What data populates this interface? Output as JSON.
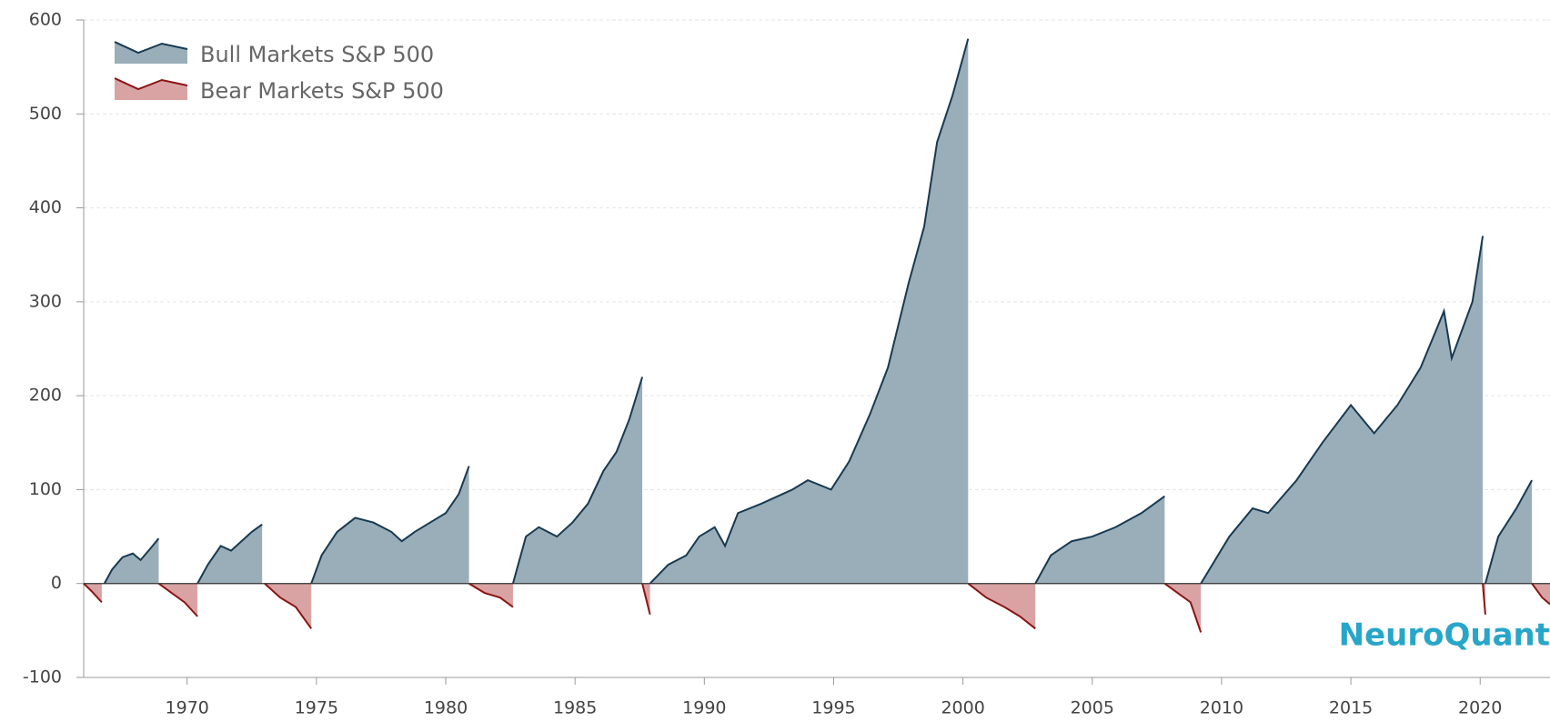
{
  "chart_data": {
    "type": "area",
    "series": [
      {
        "name": "Bull Markets S&P 500",
        "color": "#163a52",
        "fill": "#9aaeb9",
        "x": [
          1966.8,
          1967.1,
          1967.5,
          1967.9,
          1968.2,
          1968.6,
          1968.9,
          null,
          1970.4,
          1970.8,
          1971.3,
          1971.7,
          1972.1,
          1972.5,
          1972.9,
          null,
          1974.8,
          1975.2,
          1975.8,
          1976.5,
          1977.2,
          1977.9,
          1978.3,
          1978.8,
          1979.4,
          1980.0,
          1980.5,
          1980.9,
          null,
          1982.6,
          1983.1,
          1983.6,
          1984.3,
          1984.9,
          1985.5,
          1986.1,
          1986.6,
          1987.1,
          1987.6,
          null,
          1987.9,
          1988.6,
          1989.3,
          1989.8,
          1990.4,
          1990.8,
          1991.3,
          1992.2,
          1993.4,
          1994.0,
          1994.9,
          1995.6,
          1996.4,
          1997.1,
          1997.9,
          1998.5,
          1999.0,
          1999.6,
          2000.2,
          null,
          2002.8,
          2003.4,
          2004.2,
          2005.0,
          2005.9,
          2006.9,
          2007.8,
          null,
          2009.2,
          2010.3,
          2011.2,
          2011.8,
          2012.9,
          2013.9,
          2015.0,
          2015.9,
          2016.8,
          2017.7,
          2018.6,
          2018.9,
          2019.7,
          2020.1,
          null,
          2020.2,
          2020.7,
          2021.4,
          2022.0
        ],
        "values": [
          0,
          15,
          28,
          32,
          25,
          38,
          48,
          null,
          0,
          20,
          40,
          35,
          45,
          55,
          63,
          null,
          0,
          30,
          55,
          70,
          65,
          55,
          45,
          55,
          65,
          75,
          95,
          125,
          null,
          0,
          50,
          60,
          50,
          65,
          85,
          120,
          140,
          175,
          220,
          null,
          0,
          20,
          30,
          50,
          60,
          40,
          75,
          85,
          100,
          110,
          100,
          130,
          180,
          230,
          320,
          380,
          470,
          520,
          580,
          null,
          0,
          30,
          45,
          50,
          60,
          75,
          93,
          null,
          0,
          50,
          80,
          75,
          110,
          150,
          190,
          160,
          190,
          230,
          290,
          240,
          300,
          370,
          null,
          0,
          50,
          80,
          110
        ]
      },
      {
        "name": "Bear Markets S&P 500",
        "color": "#8b1414",
        "fill": "#d9a3a3",
        "x": [
          1966.0,
          1966.3,
          1966.7,
          null,
          1968.9,
          1969.4,
          1969.9,
          1970.4,
          null,
          1973.0,
          1973.6,
          1974.2,
          1974.8,
          null,
          1980.9,
          1981.5,
          1982.1,
          1982.6,
          null,
          1987.6,
          1987.9,
          null,
          2000.2,
          2000.9,
          2001.6,
          2002.2,
          2002.8,
          null,
          2007.8,
          2008.3,
          2008.8,
          2009.2,
          null,
          2020.1,
          2020.2,
          null,
          2022.0,
          2022.4,
          2022.7
        ],
        "values": [
          0,
          -8,
          -20,
          null,
          0,
          -10,
          -20,
          -35,
          null,
          0,
          -15,
          -25,
          -48,
          null,
          0,
          -10,
          -15,
          -25,
          null,
          0,
          -33,
          null,
          0,
          -15,
          -25,
          -35,
          -48,
          null,
          0,
          -10,
          -20,
          -52,
          null,
          0,
          -33,
          null,
          0,
          -15,
          -22
        ]
      }
    ],
    "xlim": [
      1966,
      2022.7
    ],
    "xticks": [
      1970,
      1975,
      1980,
      1985,
      1990,
      1995,
      2000,
      2005,
      2010,
      2015,
      2020
    ],
    "ylim": [
      -100,
      600
    ],
    "yticks": [
      -100,
      0,
      100,
      200,
      300,
      400,
      500,
      600
    ],
    "grid": true,
    "legend": "top-left",
    "watermark": "NeuroQuant"
  }
}
